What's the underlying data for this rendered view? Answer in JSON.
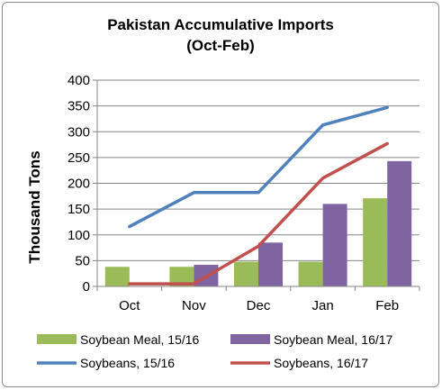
{
  "colors": {
    "soybean_meal_1516": "#9BBB59",
    "soybean_meal_1617": "#8064A2",
    "soybeans_1516": "#4F81BD",
    "soybeans_1617": "#C0504D",
    "axis": "#868686",
    "grid": "#868686"
  },
  "chart_data": {
    "type": "bar",
    "title": "Pakistan Accumulative Imports",
    "subtitle": "(Oct-Feb)",
    "xlabel": "",
    "ylabel": "Thousand Tons",
    "ylim": [
      0,
      400
    ],
    "yticks": [
      0,
      50,
      100,
      150,
      200,
      250,
      300,
      350,
      400
    ],
    "ytick_labels": [
      "0",
      "50",
      "100",
      "150",
      "200",
      "250",
      "300",
      "350",
      "400"
    ],
    "grid": "horizontal",
    "legend_position": "bottom",
    "categories": [
      "Oct",
      "Nov",
      "Dec",
      "Jan",
      "Feb"
    ],
    "series": [
      {
        "name": "Soybean Meal, 15/16",
        "kind": "bar",
        "color": "#9BBB59",
        "values": [
          38,
          38,
          48,
          48,
          171
        ]
      },
      {
        "name": "Soybean Meal, 16/17",
        "kind": "bar",
        "color": "#8064A2",
        "values": [
          0,
          42,
          85,
          160,
          243
        ]
      },
      {
        "name": "Soybeans, 15/16",
        "kind": "line",
        "color": "#4F81BD",
        "values": [
          116,
          182,
          182,
          313,
          347
        ]
      },
      {
        "name": "Soybeans, 16/17",
        "kind": "line",
        "color": "#C0504D",
        "values": [
          5,
          5,
          78,
          210,
          277
        ]
      }
    ]
  }
}
